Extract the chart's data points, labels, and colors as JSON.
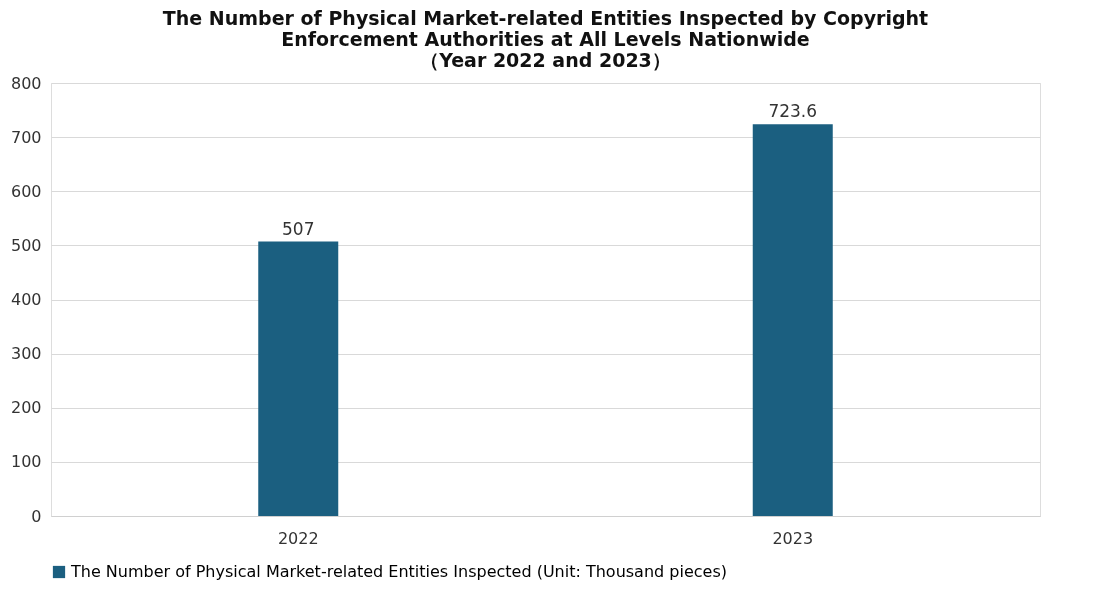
{
  "chart_data": {
    "type": "bar",
    "title": "The Number of Physical Market-related Entities Inspected by Copyright\nEnforcement Authorities at All Levels Nationwide\n（Year 2022 and 2023）",
    "categories": [
      "2022",
      "2023"
    ],
    "series": [
      {
        "name": "The Number of Physical Market-related Entities Inspected (Unit: Thousand pieces)",
        "color": "#1b5f80",
        "values": [
          507,
          723.6
        ]
      }
    ],
    "ylim": [
      0,
      800
    ],
    "yticks": [
      0,
      100,
      200,
      300,
      400,
      500,
      600,
      700,
      800
    ],
    "grid": "y",
    "legend": "bottom",
    "data_labels": true
  }
}
